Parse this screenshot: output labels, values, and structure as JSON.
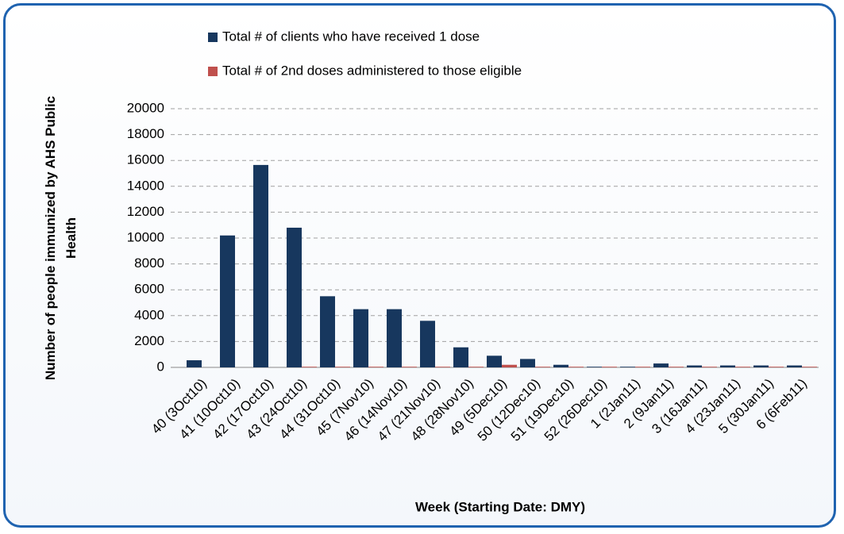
{
  "chart_data": {
    "type": "bar",
    "x_label": "Week (Starting Date: DMY)",
    "y_label": "Number of people immunized by AHS Public Health",
    "categories": [
      "40 (3Oct10)",
      "41 (10Oct10)",
      "42 (17Oct10)",
      "43 (24Oct10)",
      "44 (31Oct10)",
      "45 (7Nov10)",
      "46 (14Nov10)",
      "47 (21Nov10)",
      "48 (28Nov10)",
      "49 (5Dec10)",
      "50 (12Dec10)",
      "51 (19Dec10)",
      "52 (26Dec10)",
      "1 (2Jan11)",
      "2 (9Jan11)",
      "3 (16Jan11)",
      "4 (23Jan11)",
      "5 (30Jan11)",
      "6 (6Feb11)"
    ],
    "series": [
      {
        "name": "Total # of clients who have received 1 dose",
        "color": "#17375e",
        "values": [
          550,
          10200,
          15650,
          10800,
          5500,
          4500,
          4500,
          3600,
          1550,
          900,
          650,
          200,
          50,
          50,
          300,
          150,
          150,
          150,
          150
        ]
      },
      {
        "name": "Total # of 2nd doses administered to those eligible",
        "color": "#c0504d",
        "values": [
          0,
          0,
          0,
          50,
          50,
          50,
          50,
          50,
          50,
          200,
          50,
          50,
          50,
          50,
          50,
          50,
          50,
          50,
          50
        ]
      }
    ],
    "ylim": [
      0,
      20000
    ],
    "yticks": [
      0,
      2000,
      4000,
      6000,
      8000,
      10000,
      12000,
      14000,
      16000,
      18000,
      20000
    ],
    "grid": true,
    "legend": "top"
  }
}
